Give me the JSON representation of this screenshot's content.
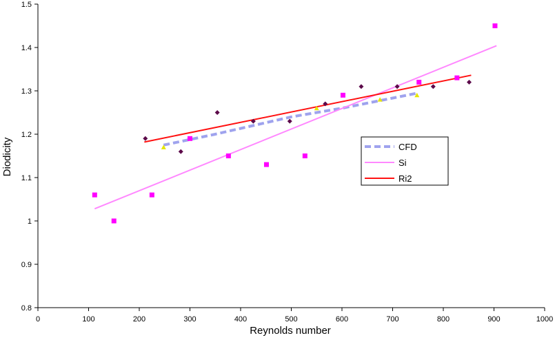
{
  "chart_data": {
    "type": "scatter",
    "xlabel": "Reynolds number",
    "ylabel": "Diodicity",
    "xlim": [
      0,
      1000
    ],
    "ylim": [
      0.8,
      1.5
    ],
    "x_ticks": [
      0,
      100,
      200,
      300,
      400,
      500,
      600,
      700,
      800,
      900,
      1000
    ],
    "y_ticks": [
      0.8,
      0.9,
      1,
      1.1,
      1.2,
      1.3,
      1.4,
      1.5
    ],
    "grid": false,
    "legend_position": "center-right",
    "legend": [
      {
        "label": "CFD",
        "color": "#9fa3ee",
        "style": "dashed"
      },
      {
        "label": "Si",
        "color": "#ff88ff",
        "style": "solid"
      },
      {
        "label": "Ri2",
        "color": "#ff1010",
        "style": "solid"
      }
    ],
    "series": [
      {
        "name": "Si",
        "marker": "square",
        "color": "#ff00ff",
        "points": [
          [
            112,
            1.06
          ],
          [
            150,
            1.0
          ],
          [
            225,
            1.06
          ],
          [
            300,
            1.19
          ],
          [
            376,
            1.15
          ],
          [
            451,
            1.13
          ],
          [
            527,
            1.15
          ],
          [
            602,
            1.29
          ],
          [
            752,
            1.32
          ],
          [
            827,
            1.33
          ],
          [
            902,
            1.45
          ]
        ]
      },
      {
        "name": "Ri2",
        "marker": "diamond",
        "color": "#5c0a4a",
        "points": [
          [
            212,
            1.19
          ],
          [
            282,
            1.16
          ],
          [
            354,
            1.25
          ],
          [
            425,
            1.23
          ],
          [
            497,
            1.23
          ],
          [
            567,
            1.27
          ],
          [
            638,
            1.31
          ],
          [
            709,
            1.31
          ],
          [
            780,
            1.31
          ],
          [
            851,
            1.32
          ]
        ]
      },
      {
        "name": "CFD",
        "marker": "triangle",
        "color": "#e6e600",
        "points": [
          [
            248,
            1.17
          ],
          [
            550,
            1.26
          ],
          [
            675,
            1.28
          ],
          [
            748,
            1.29
          ]
        ]
      }
    ],
    "trendlines": [
      {
        "name": "CFD",
        "color": "#9fa3ee",
        "style": "dashed",
        "points": [
          [
            248,
            1.175
          ],
          [
            350,
            1.2
          ],
          [
            500,
            1.24
          ],
          [
            600,
            1.26
          ],
          [
            750,
            1.295
          ]
        ]
      },
      {
        "name": "Si",
        "color": "#ff88ff",
        "style": "solid",
        "points": [
          [
            112,
            1.028
          ],
          [
            905,
            1.404
          ]
        ]
      },
      {
        "name": "Ri2",
        "color": "#ff1010",
        "style": "solid",
        "points": [
          [
            210,
            1.182
          ],
          [
            855,
            1.336
          ]
        ]
      }
    ]
  }
}
